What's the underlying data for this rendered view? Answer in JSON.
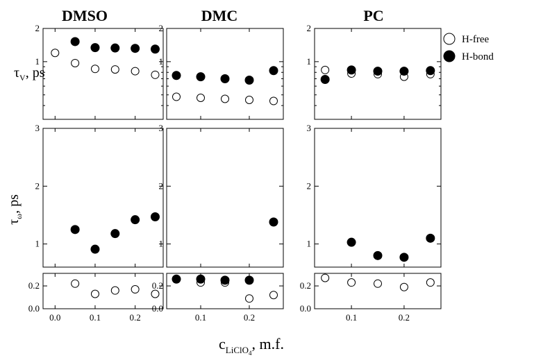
{
  "chart_data": {
    "type": "scatter",
    "columns": [
      {
        "id": "dmso",
        "title": "DMSO"
      },
      {
        "id": "dmc",
        "title": "DMC"
      },
      {
        "id": "pc",
        "title": "PC"
      }
    ],
    "series": [
      {
        "id": "free",
        "name": "H-free",
        "marker": "open-circle"
      },
      {
        "id": "bond",
        "name": "H-bond",
        "marker": "filled-circle"
      }
    ],
    "y_labels": {
      "tau_v": {
        "main": "τ",
        "sub": "V",
        "unit": ", ps"
      },
      "tau_w": {
        "main": "τ",
        "sub": "ω",
        "unit": ", ps"
      }
    },
    "x_label": {
      "main": "c",
      "sub": "LiClO",
      "sub2": "4",
      "unit": ", m.f."
    },
    "x_ticks": {
      "dmso": {
        "values": [
          0.0,
          0.1,
          0.2
        ],
        "labels": [
          "0.0",
          "0.1",
          "0.2"
        ]
      },
      "dmc": {
        "values": [
          0.1,
          0.2
        ],
        "labels": [
          "0.1",
          "0.2"
        ]
      },
      "pc": {
        "values": [
          0.1,
          0.2
        ],
        "labels": [
          "0.1",
          "0.2"
        ]
      }
    },
    "x_ranges": {
      "dmso": [
        -0.03,
        0.27
      ],
      "dmc": [
        0.03,
        0.27
      ],
      "pc": [
        0.03,
        0.27
      ]
    },
    "rows": [
      {
        "id": "tau_v",
        "y_range": [
          0.3,
          2.0
        ],
        "scale": "log",
        "y_ticks": [
          {
            "value": 1,
            "label": "1"
          },
          {
            "value": 2,
            "label": "2"
          }
        ],
        "data": {
          "dmso": {
            "free": [
              [
                0.0,
                1.2
              ],
              [
                0.05,
                0.97
              ],
              [
                0.1,
                0.86
              ],
              [
                0.15,
                0.85
              ],
              [
                0.2,
                0.82
              ],
              [
                0.25,
                0.76
              ]
            ],
            "bond": [
              [
                0.05,
                1.52
              ],
              [
                0.1,
                1.34
              ],
              [
                0.15,
                1.33
              ],
              [
                0.2,
                1.32
              ],
              [
                0.25,
                1.3
              ]
            ]
          },
          "dmc": {
            "free": [
              [
                0.05,
                0.48
              ],
              [
                0.1,
                0.47
              ],
              [
                0.15,
                0.46
              ],
              [
                0.2,
                0.45
              ],
              [
                0.25,
                0.44
              ]
            ],
            "bond": [
              [
                0.05,
                0.75
              ],
              [
                0.1,
                0.73
              ],
              [
                0.15,
                0.7
              ],
              [
                0.2,
                0.68
              ],
              [
                0.25,
                0.83
              ]
            ]
          },
          "pc": {
            "free": [
              [
                0.05,
                0.84
              ],
              [
                0.1,
                0.78
              ],
              [
                0.15,
                0.77
              ],
              [
                0.2,
                0.73
              ],
              [
                0.25,
                0.77
              ]
            ],
            "bond": [
              [
                0.05,
                0.69
              ],
              [
                0.1,
                0.84
              ],
              [
                0.15,
                0.82
              ],
              [
                0.2,
                0.82
              ],
              [
                0.25,
                0.83
              ]
            ]
          }
        }
      },
      {
        "id": "tau_w_high",
        "y_range": [
          0.6,
          3.0
        ],
        "scale": "linear",
        "y_ticks": [
          {
            "value": 1,
            "label": "1"
          },
          {
            "value": 2,
            "label": "2"
          },
          {
            "value": 3,
            "label": "3"
          }
        ],
        "data": {
          "dmso": {
            "free": [],
            "bond": [
              [
                0.05,
                1.25
              ],
              [
                0.1,
                0.91
              ],
              [
                0.15,
                1.18
              ],
              [
                0.2,
                1.42
              ],
              [
                0.25,
                1.47
              ]
            ]
          },
          "dmc": {
            "free": [],
            "bond": [
              [
                0.25,
                1.38
              ]
            ]
          },
          "pc": {
            "free": [],
            "bond": [
              [
                0.1,
                1.03
              ],
              [
                0.15,
                0.8
              ],
              [
                0.2,
                0.77
              ],
              [
                0.25,
                1.1
              ]
            ]
          }
        }
      },
      {
        "id": "tau_w_low",
        "y_range": [
          0.0,
          0.31
        ],
        "scale": "linear",
        "y_ticks": [
          {
            "value": 0.0,
            "label": "0.0"
          },
          {
            "value": 0.2,
            "label": "0.2"
          }
        ],
        "data": {
          "dmso": {
            "free": [
              [
                0.05,
                0.22
              ],
              [
                0.1,
                0.13
              ],
              [
                0.15,
                0.16
              ],
              [
                0.2,
                0.17
              ],
              [
                0.25,
                0.13
              ]
            ],
            "bond": []
          },
          "dmc": {
            "free": [
              [
                0.05,
                0.26
              ],
              [
                0.1,
                0.23
              ],
              [
                0.15,
                0.23
              ],
              [
                0.2,
                0.09
              ],
              [
                0.25,
                0.12
              ]
            ],
            "bond": [
              [
                0.05,
                0.26
              ],
              [
                0.1,
                0.26
              ],
              [
                0.15,
                0.25
              ],
              [
                0.2,
                0.25
              ]
            ]
          },
          "pc": {
            "free": [
              [
                0.05,
                0.27
              ],
              [
                0.1,
                0.23
              ],
              [
                0.15,
                0.22
              ],
              [
                0.2,
                0.19
              ],
              [
                0.25,
                0.23
              ]
            ],
            "bond": []
          }
        }
      }
    ]
  }
}
